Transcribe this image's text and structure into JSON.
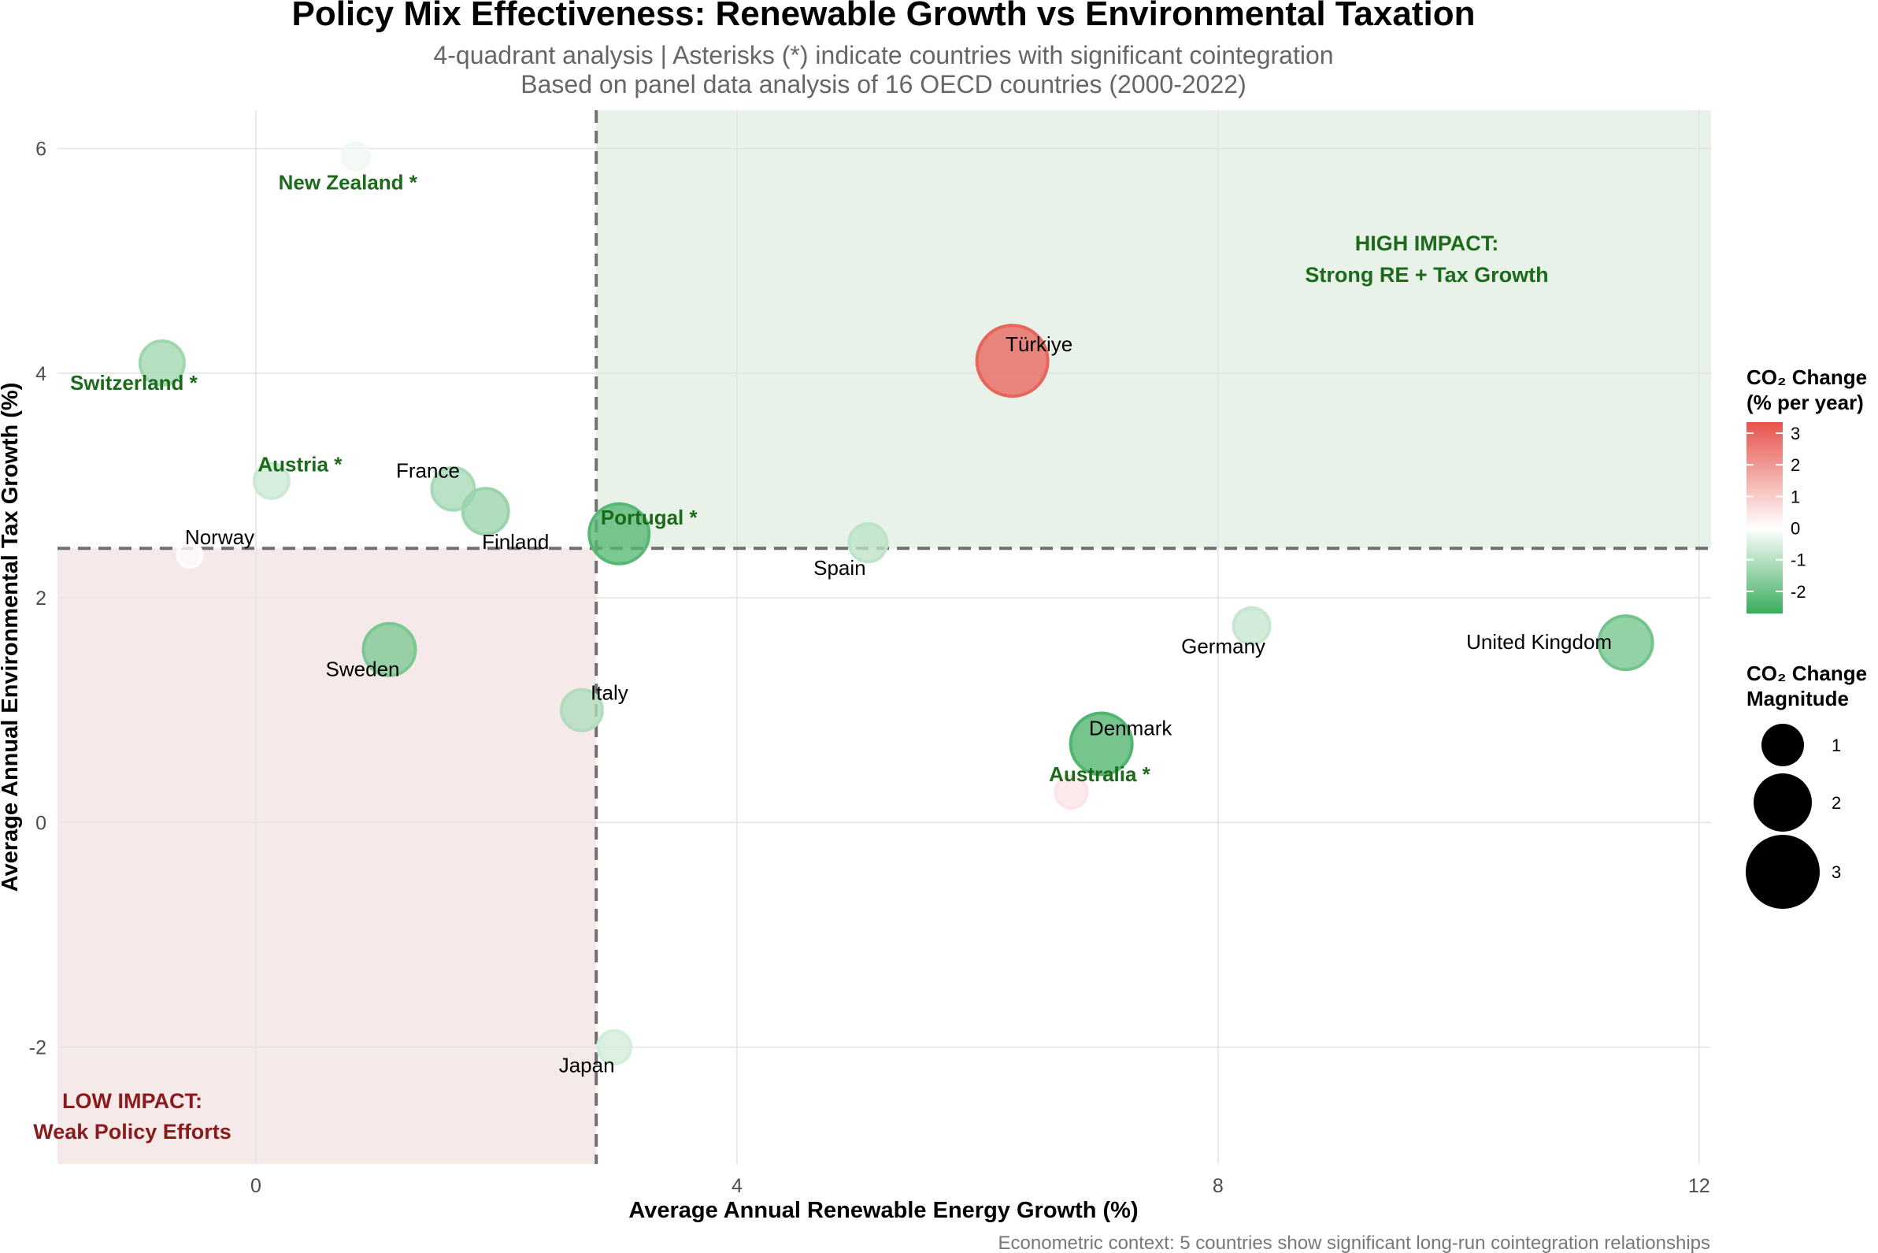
{
  "chart_data": {
    "type": "scatter",
    "title": "Policy Mix Effectiveness: Renewable Growth vs Environmental Taxation",
    "subtitle_lines": [
      "4-quadrant analysis | Asterisks (*) indicate countries with significant cointegration",
      "Based on panel data analysis of 16 OECD countries (2000-2022)"
    ],
    "caption": "Econometric context: 5 countries show significant long-run cointegration relationships",
    "xlabel": "Average Annual Renewable Energy Growth (%)",
    "ylabel": "Average Annual Environmental Tax Growth (%)",
    "xlim": [
      -1.65,
      12.1
    ],
    "ylim": [
      -3.04,
      6.34
    ],
    "x_ticks": [
      0,
      4,
      8,
      12
    ],
    "y_ticks": [
      -2,
      0,
      2,
      4,
      6
    ],
    "grid": true,
    "x_threshold": 2.83,
    "y_threshold": 2.44,
    "quadrants": {
      "high": {
        "line1": "HIGH IMPACT:",
        "line2": "Strong RE + Tax Growth",
        "color": "#e8f2e8"
      },
      "low": {
        "line1": "LOW IMPACT:",
        "line2": "Weak Policy Efforts",
        "color": "#f5e9e9"
      }
    },
    "points": [
      {
        "country": "New Zealand *",
        "x": 0.83,
        "y": 5.93,
        "co2": -0.2,
        "sig": true
      },
      {
        "country": "Switzerland *",
        "x": -0.78,
        "y": 4.09,
        "co2": -1.3,
        "sig": true
      },
      {
        "country": "Austria *",
        "x": 0.13,
        "y": 3.04,
        "co2": -0.7,
        "sig": true
      },
      {
        "country": "France",
        "x": 1.64,
        "y": 2.97,
        "co2": -1.2,
        "sig": false
      },
      {
        "country": "Finland",
        "x": 1.91,
        "y": 2.77,
        "co2": -1.4,
        "sig": false
      },
      {
        "country": "Norway",
        "x": -0.55,
        "y": 2.38,
        "co2": 0.05,
        "sig": false
      },
      {
        "country": "Portugal *",
        "x": 3.02,
        "y": 2.57,
        "co2": -2.3,
        "sig": true
      },
      {
        "country": "Spain",
        "x": 5.09,
        "y": 2.49,
        "co2": -0.9,
        "sig": false
      },
      {
        "country": "Türkiye",
        "x": 6.29,
        "y": 4.11,
        "co2": 3.0,
        "sig": false
      },
      {
        "country": "Germany",
        "x": 8.28,
        "y": 1.75,
        "co2": -0.8,
        "sig": false
      },
      {
        "country": "United Kingdom",
        "x": 11.39,
        "y": 1.6,
        "co2": -1.9,
        "sig": false
      },
      {
        "country": "Sweden",
        "x": 1.11,
        "y": 1.54,
        "co2": -1.8,
        "sig": false
      },
      {
        "country": "Italy",
        "x": 2.71,
        "y": 1.0,
        "co2": -1.1,
        "sig": false
      },
      {
        "country": "Denmark",
        "x": 7.03,
        "y": 0.7,
        "co2": -2.4,
        "sig": false
      },
      {
        "country": "Australia *",
        "x": 6.78,
        "y": 0.27,
        "co2": 0.5,
        "sig": true
      },
      {
        "country": "Japan",
        "x": 2.98,
        "y": -2.0,
        "co2": -0.6,
        "sig": false
      }
    ],
    "color_legend": {
      "title_line1": "CO₂ Change",
      "title_line2": "(% per year)",
      "range": [
        -2.7,
        3.35
      ],
      "ticks": [
        3,
        2,
        1,
        0,
        -1,
        -2
      ],
      "high_color": "#e5534b",
      "mid_color": "#ffffff",
      "low_color": "#3aac5d"
    },
    "size_legend": {
      "title_line1": "CO₂ Change",
      "title_line2": "Magnitude",
      "values": [
        1,
        2,
        3
      ]
    }
  }
}
